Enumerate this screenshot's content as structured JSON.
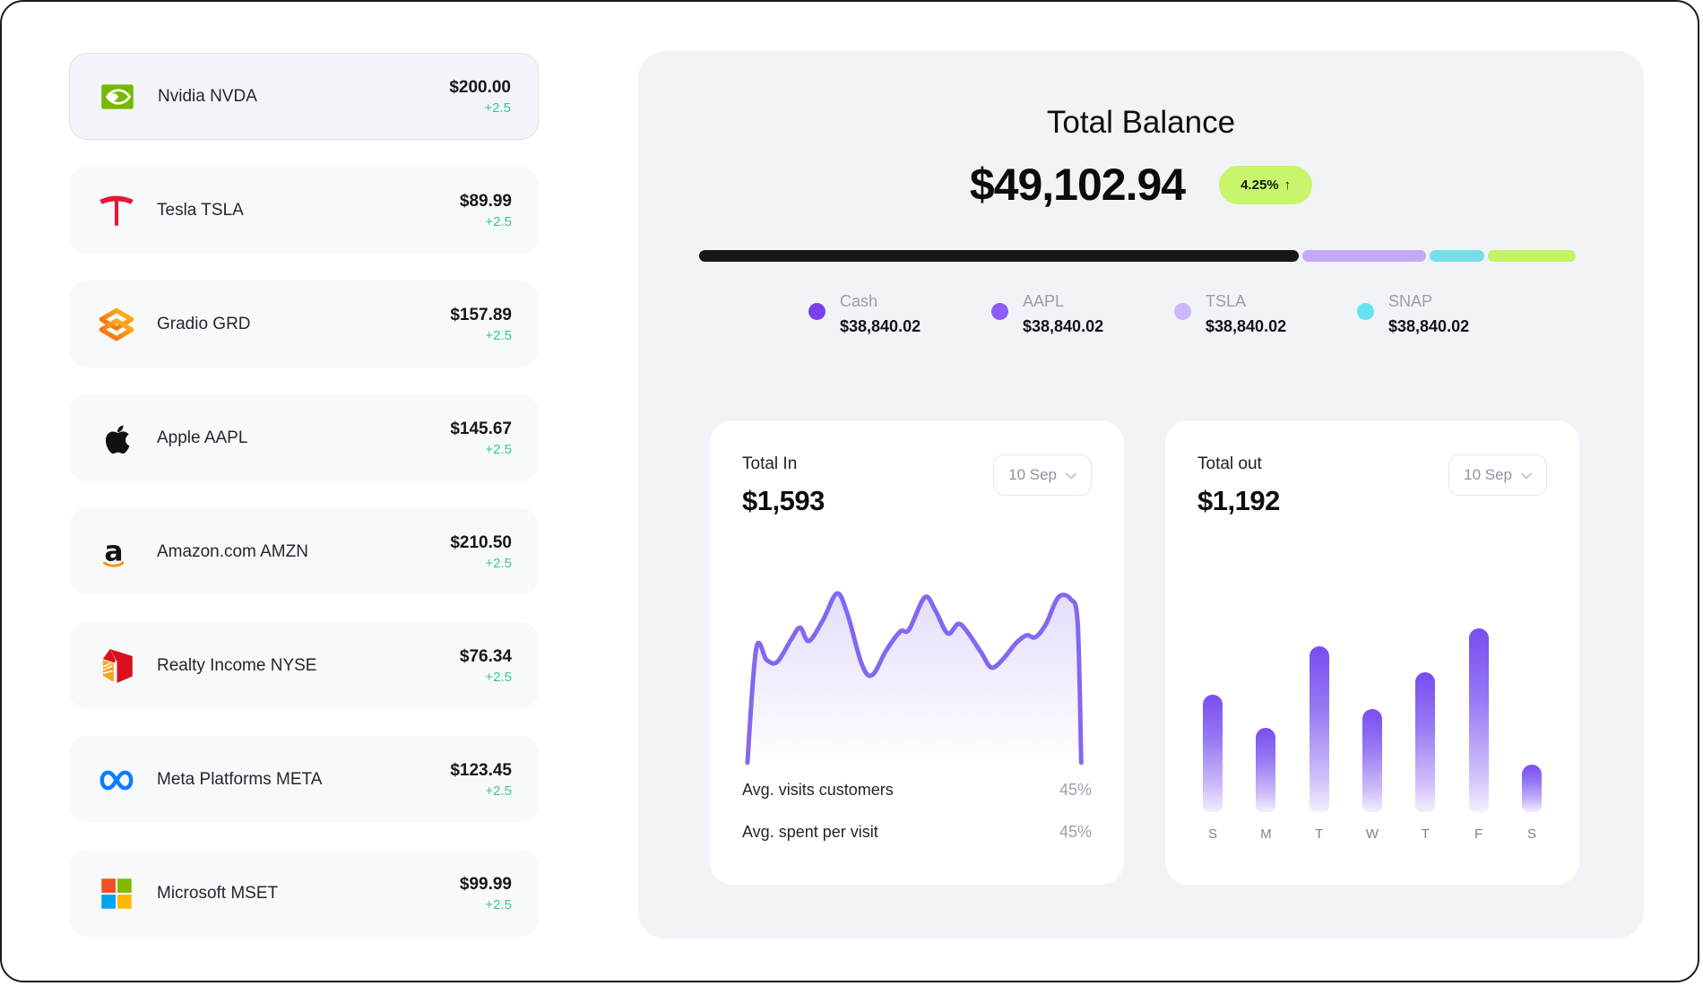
{
  "sidebar": {
    "stocks": [
      {
        "name": "Nvidia NVDA",
        "price": "$200.00",
        "change": "+2.5",
        "icon": "nvidia-logo",
        "selected": true
      },
      {
        "name": "Tesla TSLA",
        "price": "$89.99",
        "change": "+2.5",
        "icon": "tesla-logo",
        "selected": false
      },
      {
        "name": "Gradio GRD",
        "price": "$157.89",
        "change": "+2.5",
        "icon": "gradio-logo",
        "selected": false
      },
      {
        "name": "Apple AAPL",
        "price": "$145.67",
        "change": "+2.5",
        "icon": "apple-logo",
        "selected": false
      },
      {
        "name": "Amazon.com AMZN",
        "price": "$210.50",
        "change": "+2.5",
        "icon": "amazon-logo",
        "selected": false
      },
      {
        "name": "Realty Income NYSE",
        "price": "$76.34",
        "change": "+2.5",
        "icon": "realty-income-logo",
        "selected": false
      },
      {
        "name": "Meta Platforms META",
        "price": "$123.45",
        "change": "+2.5",
        "icon": "meta-logo",
        "selected": false
      },
      {
        "name": "Microsoft MSET",
        "price": "$99.99",
        "change": "+2.5",
        "icon": "microsoft-logo",
        "selected": false
      }
    ]
  },
  "balance": {
    "title": "Total Balance",
    "amount": "$49,102.94",
    "change_pct": "4.25%",
    "change_arrow": "↑",
    "badge_color": "#c8f56c"
  },
  "allocation": {
    "bar_segments": [
      {
        "color": "#17171b",
        "pct": 69.3
      },
      {
        "color": "#c4a9f7",
        "pct": 14.2
      },
      {
        "color": "#74dfe9",
        "pct": 6.4
      },
      {
        "color": "#c4f263",
        "pct": 10.1
      }
    ],
    "legend": [
      {
        "label": "Cash",
        "value": "$38,840.02",
        "dot_color": "#7b40ee"
      },
      {
        "label": "AAPL",
        "value": "$38,840.02",
        "dot_color": "#8b5cf6"
      },
      {
        "label": "TSLA",
        "value": "$38,840.02",
        "dot_color": "#c9b8fa"
      },
      {
        "label": "SNAP",
        "value": "$38,840.02",
        "dot_color": "#66e3ee"
      }
    ]
  },
  "chart_data": [
    {
      "type": "area",
      "title": "Total In",
      "total": "$1,593",
      "period": "10 Sep",
      "line_color": "#8468ef",
      "fill_color": "#8468ef",
      "x_range": [
        0,
        100
      ],
      "y_range": [
        0,
        100
      ],
      "points": [
        [
          1.5,
          2
        ],
        [
          4,
          62
        ],
        [
          7,
          56
        ],
        [
          10,
          55
        ],
        [
          14,
          67
        ],
        [
          16.5,
          73
        ],
        [
          19,
          66
        ],
        [
          23,
          77
        ],
        [
          27,
          91
        ],
        [
          30,
          80
        ],
        [
          34,
          54
        ],
        [
          37,
          48
        ],
        [
          41,
          61
        ],
        [
          45,
          71
        ],
        [
          47.5,
          72
        ],
        [
          52,
          89
        ],
        [
          55,
          82
        ],
        [
          58.5,
          70
        ],
        [
          61.5,
          75
        ],
        [
          64,
          71
        ],
        [
          68,
          60
        ],
        [
          71,
          52
        ],
        [
          74.5,
          57
        ],
        [
          78,
          65
        ],
        [
          81,
          69
        ],
        [
          83.5,
          68
        ],
        [
          86.5,
          75
        ],
        [
          90,
          89
        ],
        [
          93.5,
          88
        ],
        [
          95.5,
          75
        ],
        [
          96.5,
          2
        ]
      ],
      "stats": [
        {
          "label": "Avg. visits customers",
          "value": "45%"
        },
        {
          "label": "Avg. spent per visit",
          "value": "45%"
        }
      ]
    },
    {
      "type": "bar",
      "title": "Total out",
      "total": "$1,192",
      "period": "10 Sep",
      "categories": [
        "S",
        "M",
        "T",
        "W",
        "T",
        "F",
        "S"
      ],
      "values": [
        64,
        46,
        90,
        56,
        76,
        100,
        26
      ],
      "ylim": [
        0,
        100
      ],
      "bar_color_top": "#7a4cf0",
      "bar_color_bottom": "#f4effe"
    }
  ]
}
